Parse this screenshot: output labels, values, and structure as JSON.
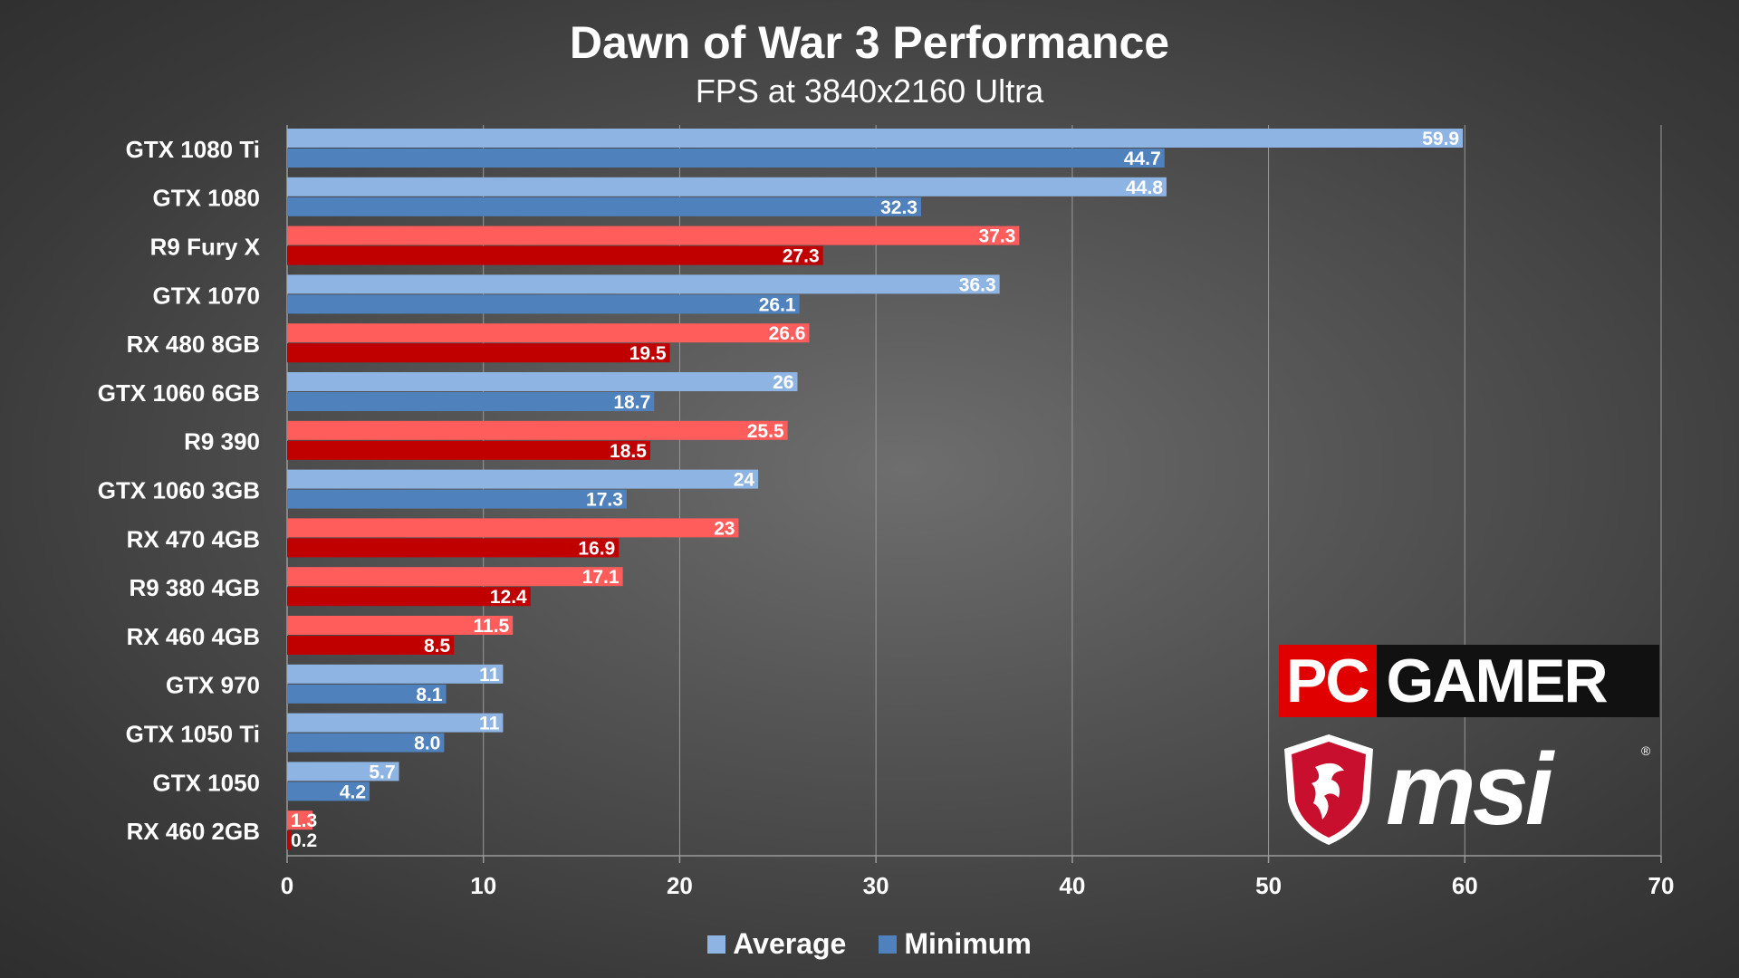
{
  "chart_data": {
    "type": "bar",
    "orientation": "horizontal",
    "title": "Dawn of War 3 Performance",
    "subtitle": "FPS at 3840x2160 Ultra",
    "categories": [
      "GTX 1080 Ti",
      "GTX 1080",
      "R9 Fury X",
      "GTX 1070",
      "RX 480 8GB",
      "GTX 1060 6GB",
      "R9 390",
      "GTX 1060 3GB",
      "RX 470 4GB",
      "R9 380 4GB",
      "RX 460 4GB",
      "GTX 970",
      "GTX 1050 Ti",
      "GTX 1050",
      "RX 460 2GB"
    ],
    "vendor": [
      "nvidia",
      "nvidia",
      "amd",
      "nvidia",
      "amd",
      "nvidia",
      "amd",
      "nvidia",
      "amd",
      "amd",
      "amd",
      "nvidia",
      "nvidia",
      "nvidia",
      "amd"
    ],
    "series": [
      {
        "name": "Average",
        "values": [
          59.9,
          44.8,
          37.3,
          36.3,
          26.6,
          26,
          25.5,
          24,
          23,
          17.1,
          11.5,
          11,
          11,
          5.7,
          1.3
        ],
        "labels": [
          "59.9",
          "44.8",
          "37.3",
          "36.3",
          "26.6",
          "26",
          "25.5",
          "24",
          "23",
          "17.1",
          "11.5",
          "11",
          "11",
          "5.7",
          "1.3"
        ]
      },
      {
        "name": "Minimum",
        "values": [
          44.7,
          32.3,
          27.3,
          26.1,
          19.5,
          18.7,
          18.5,
          17.3,
          16.9,
          12.4,
          8.5,
          8.1,
          8.0,
          4.2,
          0.2
        ],
        "labels": [
          "44.7",
          "32.3",
          "27.3",
          "26.1",
          "19.5",
          "18.7",
          "18.5",
          "17.3",
          "16.9",
          "12.4",
          "8.5",
          "8.1",
          "8.0",
          "4.2",
          "0.2"
        ]
      }
    ],
    "xlim": [
      0,
      70
    ],
    "xticks": [
      "0",
      "10",
      "20",
      "30",
      "40",
      "50",
      "60",
      "70"
    ],
    "grid": true,
    "legend_position": "bottom-center"
  },
  "colors": {
    "nvidia_average": "#8eb4e3",
    "nvidia_minimum": "#4f81bd",
    "amd_average": "#ff5c5c",
    "amd_minimum": "#c00000",
    "text": "#ffffff",
    "grid": "#9a9a9a"
  },
  "logos": {
    "pcgamer_pc": "PC",
    "pcgamer_gamer": "GAMER",
    "msi_text": "msi",
    "msi_reg": "®",
    "msi_icon": "dragon-shield-icon"
  }
}
